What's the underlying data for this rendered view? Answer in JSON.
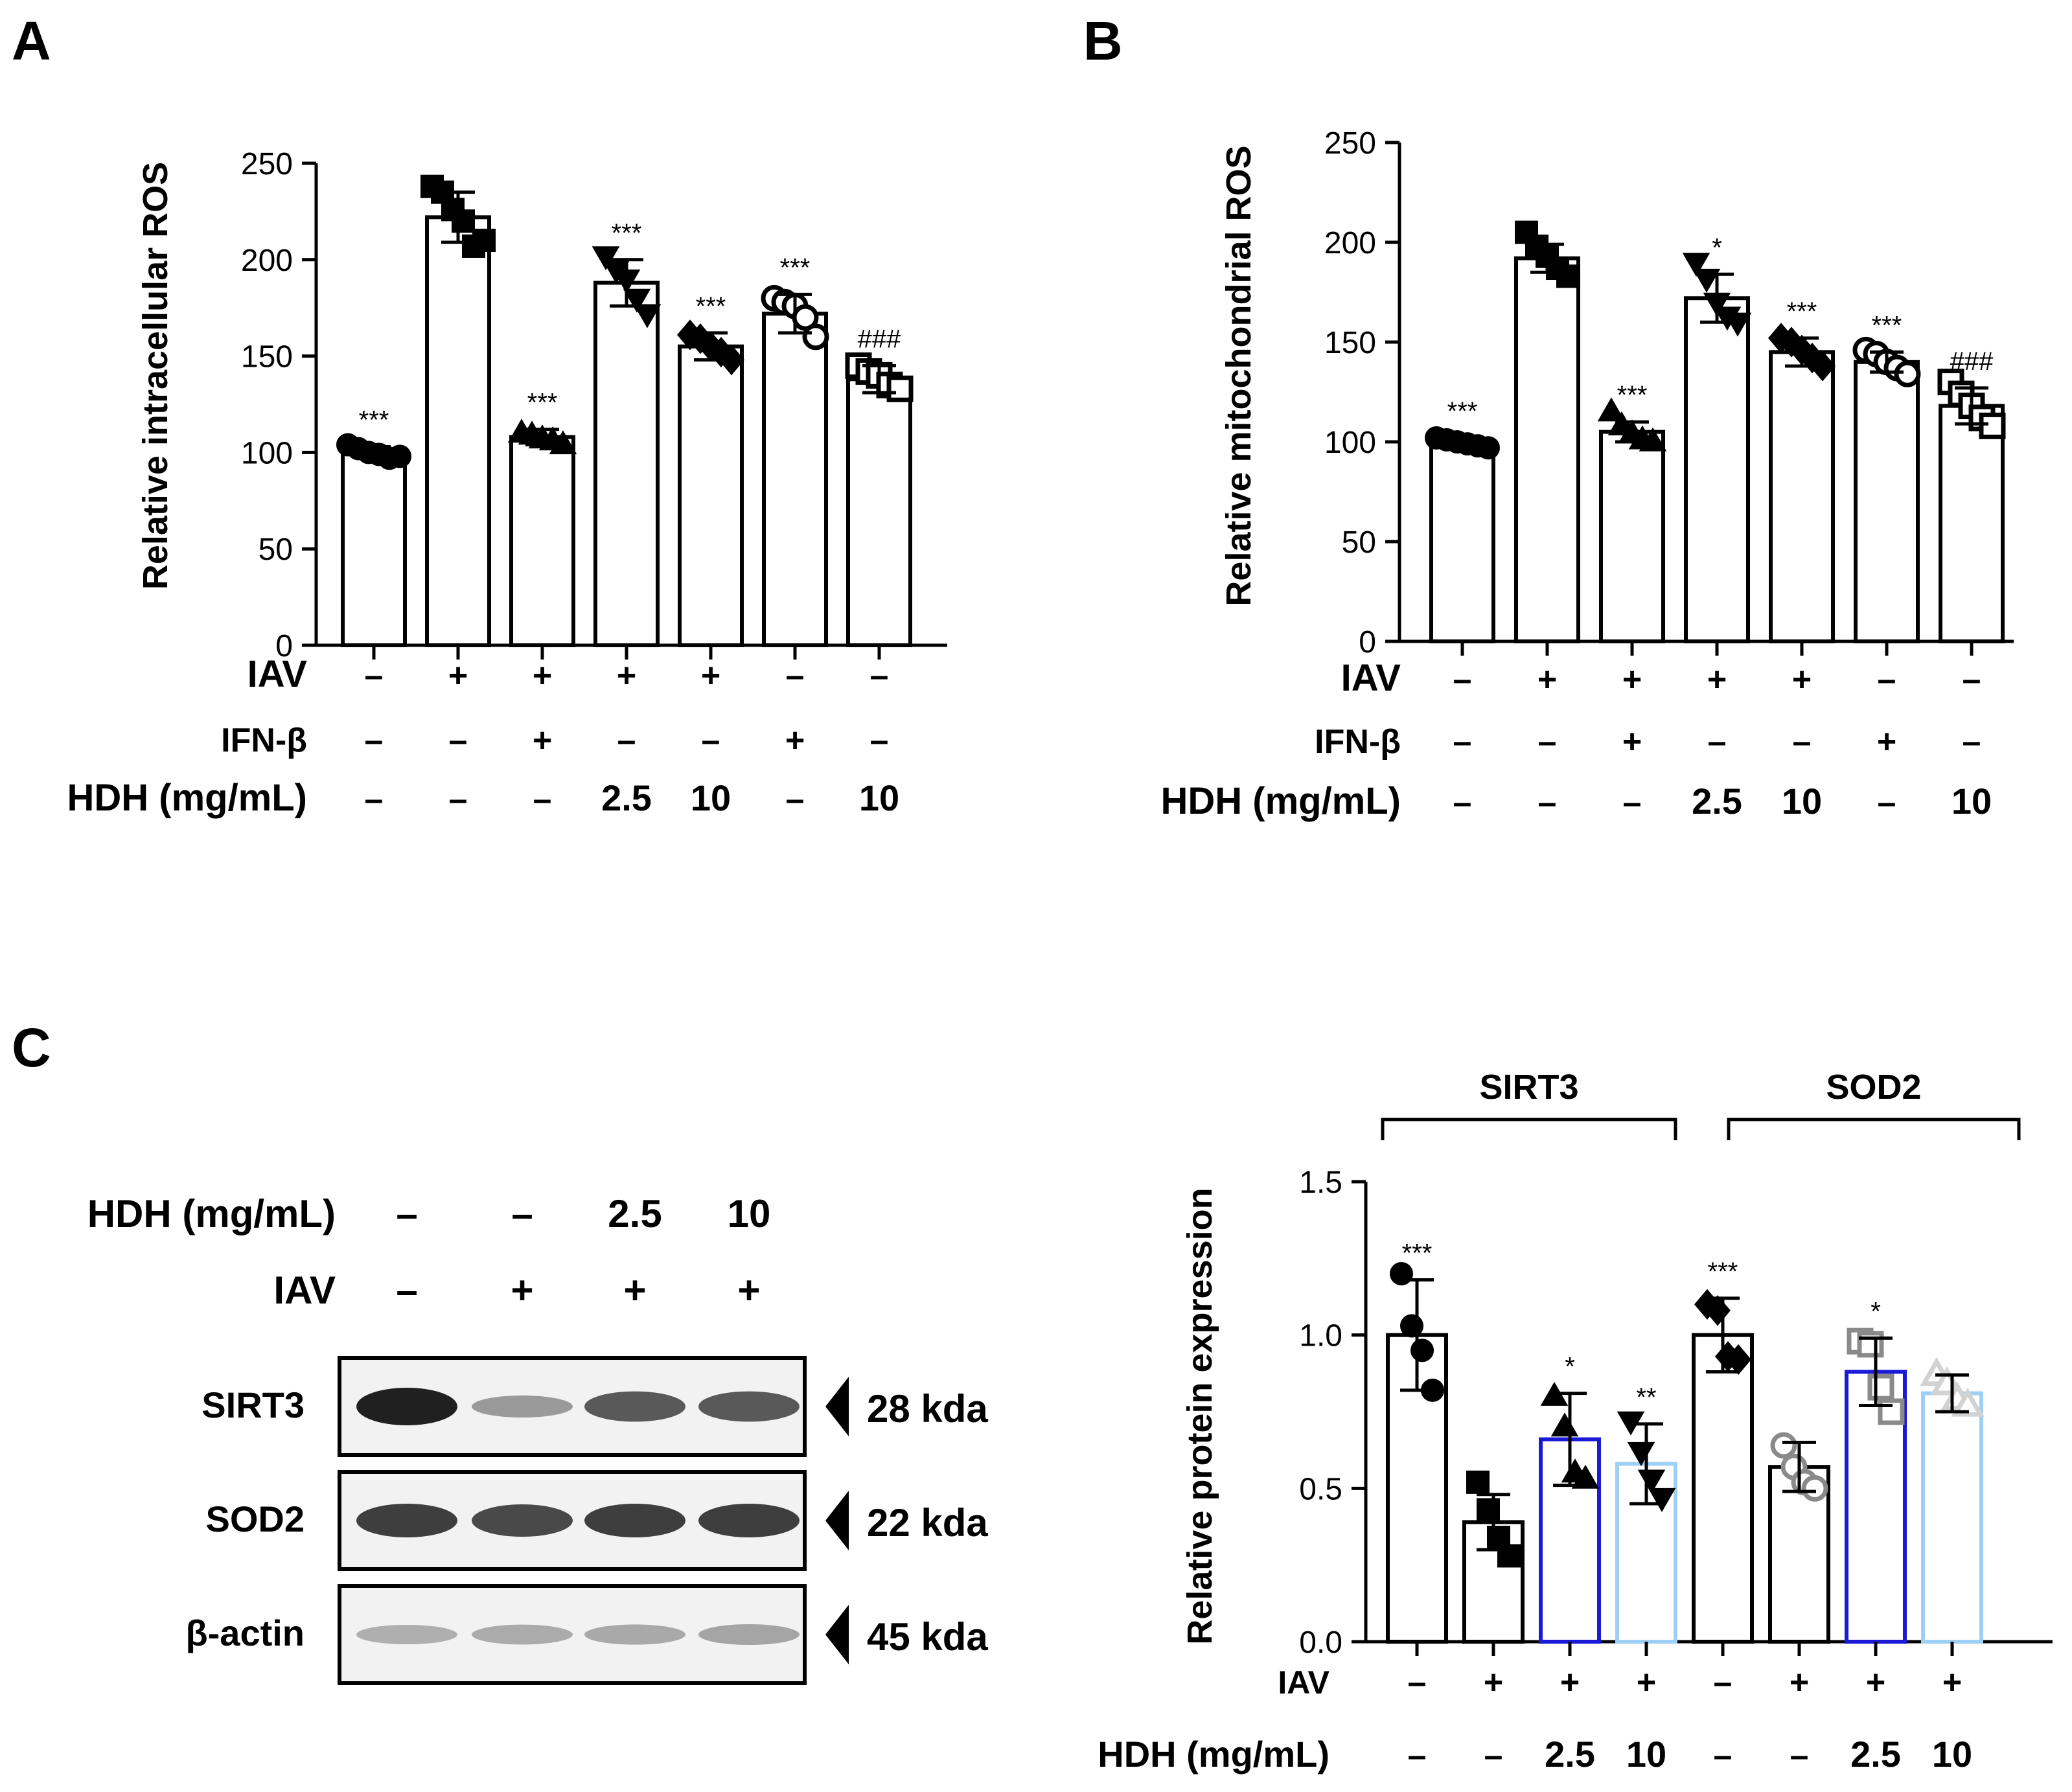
{
  "panel_letters": {
    "a": "A",
    "b": "B",
    "c": "C"
  },
  "chart_data": [
    {
      "id": "A",
      "type": "bar",
      "ylabel": "Relative intracellular ROS",
      "ylim": [
        0,
        250
      ],
      "yticks": [
        0,
        50,
        100,
        150,
        200,
        250
      ],
      "values": [
        100,
        222,
        108,
        188,
        155,
        172,
        138
      ],
      "errors": [
        3,
        13,
        4,
        12,
        7,
        10,
        7
      ],
      "points": [
        [
          104,
          102,
          100,
          99,
          97,
          98
        ],
        [
          238,
          235,
          226,
          220,
          207,
          210
        ],
        [
          110,
          109,
          107,
          106,
          104
        ],
        [
          202,
          195,
          190,
          180,
          172
        ],
        [
          161,
          159,
          155,
          152,
          148
        ],
        [
          180,
          178,
          176,
          170,
          160
        ],
        [
          145,
          142,
          140,
          135,
          133
        ]
      ],
      "markers": [
        "circle-filled",
        "square-filled",
        "triangle-filled",
        "triangle-down-filled",
        "diamond-filled",
        "circle-open",
        "square-open"
      ],
      "significance": [
        "***",
        "",
        "***",
        "***",
        "***",
        "***",
        "###"
      ],
      "conditions": [
        {
          "label": "IAV",
          "values": [
            "–",
            "+",
            "+",
            "+",
            "+",
            "–",
            "–"
          ]
        },
        {
          "label": "IFN-β",
          "values": [
            "–",
            "–",
            "+",
            "–",
            "–",
            "+",
            "–"
          ]
        },
        {
          "label": "HDH (mg/mL)",
          "values": [
            "–",
            "–",
            "–",
            "2.5",
            "10",
            "–",
            "10"
          ]
        }
      ],
      "colors": {
        "bar_fill": "#ffffff",
        "bar_stroke": "#000000"
      }
    },
    {
      "id": "B",
      "type": "bar",
      "ylabel": "Relative mitochondrial ROS",
      "ylim": [
        0,
        250
      ],
      "yticks": [
        0,
        50,
        100,
        150,
        200,
        250
      ],
      "values": [
        100,
        192,
        105,
        172,
        145,
        140,
        118
      ],
      "errors": [
        2,
        7,
        5,
        12,
        7,
        5,
        9
      ],
      "points": [
        [
          102,
          101,
          100,
          99,
          98,
          97
        ],
        [
          205,
          198,
          193,
          187,
          183
        ],
        [
          115,
          108,
          104,
          101,
          100
        ],
        [
          190,
          182,
          170,
          163,
          160
        ],
        [
          152,
          150,
          146,
          142,
          138
        ],
        [
          146,
          144,
          140,
          137,
          134
        ],
        [
          130,
          124,
          118,
          112,
          108
        ]
      ],
      "markers": [
        "circle-filled",
        "square-filled",
        "triangle-filled",
        "triangle-down-filled",
        "diamond-filled",
        "circle-open",
        "square-open"
      ],
      "significance": [
        "***",
        "",
        "***",
        "*",
        "***",
        "***",
        "###"
      ],
      "conditions": [
        {
          "label": "IAV",
          "values": [
            "–",
            "+",
            "+",
            "+",
            "+",
            "–",
            "–"
          ]
        },
        {
          "label": "IFN-β",
          "values": [
            "–",
            "–",
            "+",
            "–",
            "–",
            "+",
            "–"
          ]
        },
        {
          "label": "HDH (mg/mL)",
          "values": [
            "–",
            "–",
            "–",
            "2.5",
            "10",
            "–",
            "10"
          ]
        }
      ],
      "colors": {
        "bar_fill": "#ffffff",
        "bar_stroke": "#000000"
      }
    },
    {
      "id": "C",
      "type": "bar",
      "ylabel": "Relative protein expression",
      "ylim": [
        0,
        1.5
      ],
      "yticks": [
        0.0,
        0.5,
        1.0,
        1.5
      ],
      "ytick_labels": [
        "0.0",
        "0.5",
        "1.0",
        "1.5"
      ],
      "groups": [
        "SIRT3",
        "SOD2"
      ],
      "values": [
        1.0,
        0.39,
        0.66,
        0.58,
        1.0,
        0.57,
        0.88,
        0.81
      ],
      "errors": [
        0.18,
        0.09,
        0.15,
        0.13,
        0.12,
        0.08,
        0.11,
        0.06
      ],
      "points": [
        [
          1.2,
          1.03,
          0.95,
          0.82
        ],
        [
          0.52,
          0.43,
          0.34,
          0.28
        ],
        [
          0.8,
          0.7,
          0.55,
          0.53
        ],
        [
          0.72,
          0.62,
          0.53,
          0.47
        ],
        [
          1.1,
          1.08,
          0.93,
          0.92
        ],
        [
          0.64,
          0.57,
          0.52,
          0.5
        ],
        [
          0.98,
          0.97,
          0.83,
          0.75
        ],
        [
          0.87,
          0.84,
          0.79,
          0.77
        ]
      ],
      "markers": [
        "circle-filled",
        "square-filled",
        "triangle-filled",
        "triangle-down-filled",
        "diamond-filled",
        "circle-open",
        "square-open",
        "triangle-open"
      ],
      "bar_colors": [
        "#000000",
        "#000000",
        "#1a1ad6",
        "#9ed0f5",
        "#000000",
        "#000000",
        "#1a1ad6",
        "#9ed0f5"
      ],
      "point_colors": [
        "#000000",
        "#000000",
        "#000000",
        "#000000",
        "#000000",
        "#8a8a8a",
        "#8a8a8a",
        "#d2d2d2"
      ],
      "significance": [
        "***",
        "",
        "*",
        "**",
        "***",
        "",
        "*",
        ""
      ],
      "conditions": [
        {
          "label": "IAV",
          "values": [
            "–",
            "+",
            "+",
            "+",
            "–",
            "+",
            "+",
            "+"
          ]
        },
        {
          "label": "HDH (mg/mL)",
          "values": [
            "–",
            "–",
            "2.5",
            "10",
            "–",
            "–",
            "2.5",
            "10"
          ]
        }
      ]
    }
  ],
  "western_blot": {
    "rows": [
      {
        "label": "HDH (mg/mL)",
        "values": [
          "–",
          "–",
          "2.5",
          "10"
        ]
      },
      {
        "label": "IAV",
        "values": [
          "–",
          "+",
          "+",
          "+"
        ]
      }
    ],
    "bands": [
      {
        "protein": "SIRT3",
        "size": "28 kda",
        "intensities": [
          1.0,
          0.4,
          0.72,
          0.72
        ]
      },
      {
        "protein": "SOD2",
        "size": "22 kda",
        "intensities": [
          0.85,
          0.8,
          0.85,
          0.85
        ]
      },
      {
        "protein": "β-actin",
        "size": "45 kda",
        "intensities": [
          0.3,
          0.32,
          0.33,
          0.35
        ]
      }
    ]
  }
}
